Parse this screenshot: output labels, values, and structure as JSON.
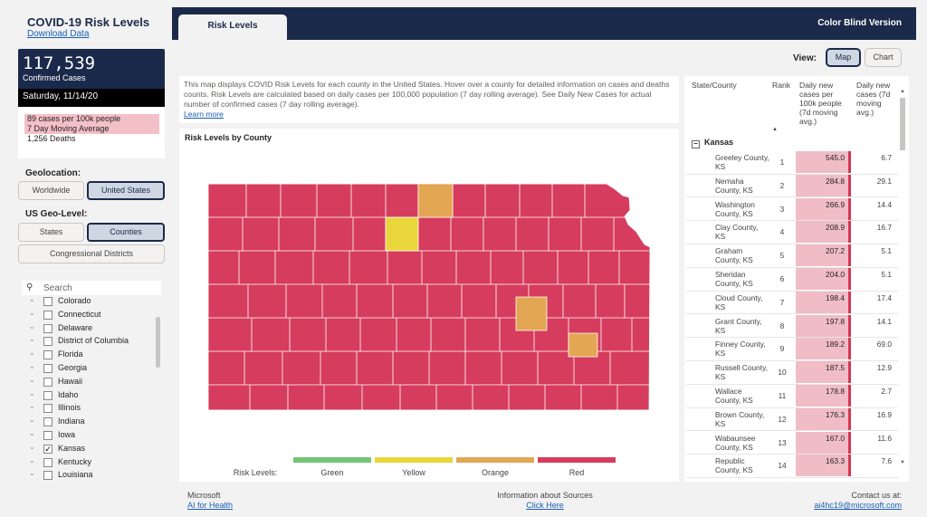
{
  "app": {
    "title": "COVID-19 Risk Levels",
    "download_label": "Download Data",
    "cases": {
      "number": "117,539",
      "label": "Confirmed Cases",
      "date": "Saturday, 11/14/20"
    },
    "stats": {
      "per100k": "89 cases per 100k people",
      "moving_avg": "7 Day Moving Average",
      "deaths": "1,256 Deaths"
    }
  },
  "geolocation": {
    "label": "Geolocation:",
    "options": [
      {
        "label": "Worldwide",
        "active": false
      },
      {
        "label": "United States",
        "active": true
      }
    ]
  },
  "geo_level": {
    "label": "US Geo-Level:",
    "options": [
      {
        "label": "States",
        "active": false
      },
      {
        "label": "Counties",
        "active": true
      },
      {
        "label": "Congressional Districts",
        "active": false
      }
    ]
  },
  "search": {
    "placeholder": "Search"
  },
  "state_list": [
    {
      "name": "Colorado",
      "checked": false
    },
    {
      "name": "Connecticut",
      "checked": false
    },
    {
      "name": "Delaware",
      "checked": false
    },
    {
      "name": "District of Columbia",
      "checked": false
    },
    {
      "name": "Florida",
      "checked": false
    },
    {
      "name": "Georgia",
      "checked": false
    },
    {
      "name": "Hawaii",
      "checked": false
    },
    {
      "name": "Idaho",
      "checked": false
    },
    {
      "name": "Illinois",
      "checked": false
    },
    {
      "name": "Indiana",
      "checked": false
    },
    {
      "name": "Iowa",
      "checked": false
    },
    {
      "name": "Kansas",
      "checked": true
    },
    {
      "name": "Kentucky",
      "checked": false
    },
    {
      "name": "Louisiana",
      "checked": false
    }
  ],
  "header": {
    "tab_label": "Risk Levels",
    "colorblind_label": "Color Blind Version"
  },
  "view": {
    "label": "View:",
    "map_label": "Map",
    "chart_label": "Chart",
    "active": "Map"
  },
  "description": {
    "text": "This map displays COVID Risk Levels for each county in the United States. Hover over a county for detailed information on cases and deaths counts. Risk Levels are calculated based on daily cases per 100,000 population (7 day rolling average). See Daily New Cases for actual number of confirmed cases (7 day rolling average).",
    "learn_more": "Learn more"
  },
  "map": {
    "title": "Risk Levels by County",
    "legend_title": "Risk Levels:",
    "colors": {
      "Green": "#74c476",
      "Yellow": "#e8d63a",
      "Orange": "#e3a653",
      "Red": "#d63c5d"
    },
    "legend": [
      "Green",
      "Yellow",
      "Orange",
      "Red"
    ]
  },
  "table": {
    "headers": {
      "county": "State/County",
      "rank": "Rank",
      "per100k": "Daily new cases per 100k people (7d moving avg.)",
      "daily": "Daily new cases (7d moving avg.)"
    },
    "group": "Kansas",
    "rows": [
      {
        "county": "Greeley County, KS",
        "rank": "1",
        "per100k": "545.0",
        "daily": "6.7"
      },
      {
        "county": "Nemaha County, KS",
        "rank": "2",
        "per100k": "284.8",
        "daily": "29.1"
      },
      {
        "county": "Washington County, KS",
        "rank": "3",
        "per100k": "266.9",
        "daily": "14.4"
      },
      {
        "county": "Clay County, KS",
        "rank": "4",
        "per100k": "208.9",
        "daily": "16.7"
      },
      {
        "county": "Graham County, KS",
        "rank": "5",
        "per100k": "207.2",
        "daily": "5.1"
      },
      {
        "county": "Sheridan County, KS",
        "rank": "6",
        "per100k": "204.0",
        "daily": "5.1"
      },
      {
        "county": "Cloud County, KS",
        "rank": "7",
        "per100k": "198.4",
        "daily": "17.4"
      },
      {
        "county": "Grant County, KS",
        "rank": "8",
        "per100k": "197.8",
        "daily": "14.1"
      },
      {
        "county": "Finney County, KS",
        "rank": "9",
        "per100k": "189.2",
        "daily": "69.0"
      },
      {
        "county": "Russell County, KS",
        "rank": "10",
        "per100k": "187.5",
        "daily": "12.9"
      },
      {
        "county": "Wallace County, KS",
        "rank": "11",
        "per100k": "178.8",
        "daily": "2.7"
      },
      {
        "county": "Brown County, KS",
        "rank": "12",
        "per100k": "176.3",
        "daily": "16.9"
      },
      {
        "county": "Wabaunsee County, KS",
        "rank": "13",
        "per100k": "167.0",
        "daily": "11.6"
      },
      {
        "county": "Republic County, KS",
        "rank": "14",
        "per100k": "163.3",
        "daily": "7.6"
      }
    ]
  },
  "footer": {
    "org": "Microsoft",
    "ai_link": "AI for Health",
    "sources_label": "Information about Sources",
    "click_here": "Click Here",
    "contact_label": "Contact us at:",
    "email": "ai4hc19@microsoft.com"
  }
}
